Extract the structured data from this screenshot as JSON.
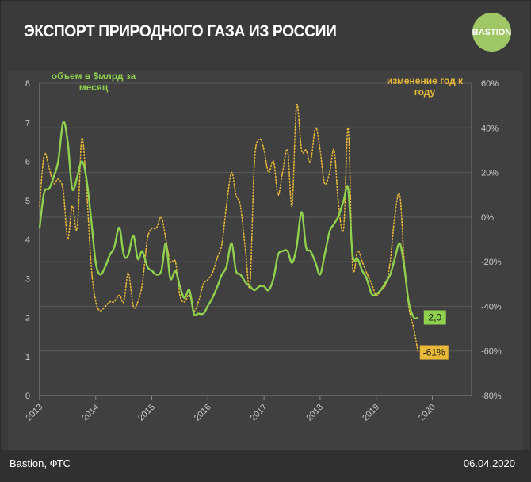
{
  "title": "ЭКСПОРТ ПРИРОДНОГО ГАЗА ИЗ РОССИИ",
  "logo_text": "BASTION",
  "source": "Bastion, ФТС",
  "date": "06.04.2020",
  "colors": {
    "volume": "#8fd14f",
    "change": "#e8b838",
    "background": "#404040",
    "grid": "#5a5a5a",
    "text": "#c8c8c8"
  },
  "chart_data": {
    "type": "line",
    "left_axis_label": "объем в $млрд за месяц",
    "right_axis_label": "изменение год к году",
    "left_ticks": [
      "0",
      "1",
      "2",
      "3",
      "4",
      "5",
      "6",
      "7",
      "8"
    ],
    "right_ticks": [
      "-80%",
      "-60%",
      "-40%",
      "-20%",
      "0%",
      "20%",
      "40%",
      "60%"
    ],
    "x_ticks": [
      "2013",
      "2014",
      "2015",
      "2016",
      "2017",
      "2018",
      "2019",
      "2020"
    ],
    "ylim_left": [
      0,
      8
    ],
    "ylim_right": [
      -80,
      60
    ],
    "grid": true,
    "series": [
      {
        "name": "объем в $млрд за месяц",
        "axis": "left",
        "style": "solid",
        "x": [
          2013.0,
          2013.08,
          2013.17,
          2013.25,
          2013.33,
          2013.42,
          2013.5,
          2013.58,
          2013.67,
          2013.75,
          2013.83,
          2013.92,
          2014.0,
          2014.08,
          2014.17,
          2014.25,
          2014.33,
          2014.42,
          2014.5,
          2014.58,
          2014.67,
          2014.75,
          2014.83,
          2014.92,
          2015.0,
          2015.08,
          2015.17,
          2015.25,
          2015.33,
          2015.42,
          2015.5,
          2015.58,
          2015.67,
          2015.75,
          2015.83,
          2015.92,
          2016.0,
          2016.08,
          2016.17,
          2016.25,
          2016.33,
          2016.42,
          2016.5,
          2016.58,
          2016.67,
          2016.75,
          2016.83,
          2016.92,
          2017.0,
          2017.08,
          2017.17,
          2017.25,
          2017.33,
          2017.42,
          2017.5,
          2017.58,
          2017.67,
          2017.75,
          2017.83,
          2017.92,
          2018.0,
          2018.08,
          2018.17,
          2018.25,
          2018.33,
          2018.42,
          2018.5,
          2018.58,
          2018.67,
          2018.75,
          2018.83,
          2018.92,
          2019.0,
          2019.08,
          2019.17,
          2019.25,
          2019.33,
          2019.42,
          2019.5,
          2019.58,
          2019.67,
          2019.75
        ],
        "values": [
          4.3,
          5.2,
          5.3,
          5.6,
          6.0,
          7.0,
          6.5,
          5.3,
          5.6,
          6.0,
          5.6,
          4.5,
          3.4,
          3.1,
          3.3,
          3.6,
          3.8,
          4.3,
          3.6,
          3.6,
          4.1,
          3.5,
          3.7,
          3.3,
          3.2,
          3.1,
          3.2,
          3.9,
          3.0,
          3.2,
          2.8,
          2.5,
          2.7,
          2.1,
          2.1,
          2.1,
          2.3,
          2.5,
          2.8,
          3.1,
          3.3,
          3.9,
          3.2,
          3.1,
          2.9,
          2.8,
          2.7,
          2.8,
          2.8,
          2.7,
          3.0,
          3.6,
          3.7,
          3.7,
          3.4,
          3.8,
          4.7,
          3.8,
          3.7,
          3.4,
          3.1,
          3.6,
          4.2,
          4.4,
          4.6,
          5.0,
          5.3,
          3.6,
          3.5,
          3.2,
          3.0,
          2.6,
          2.6,
          2.7,
          2.9,
          3.1,
          3.5,
          3.9,
          3.3,
          2.4,
          2.0,
          2.0
        ]
      },
      {
        "name": "изменение год к году",
        "axis": "right",
        "style": "dotted",
        "x": [
          2013.0,
          2013.08,
          2013.17,
          2013.25,
          2013.33,
          2013.42,
          2013.5,
          2013.58,
          2013.67,
          2013.75,
          2013.83,
          2013.92,
          2014.0,
          2014.08,
          2014.17,
          2014.25,
          2014.33,
          2014.42,
          2014.5,
          2014.58,
          2014.67,
          2014.75,
          2014.83,
          2014.92,
          2015.0,
          2015.08,
          2015.17,
          2015.25,
          2015.33,
          2015.42,
          2015.5,
          2015.58,
          2015.67,
          2015.75,
          2015.83,
          2015.92,
          2016.0,
          2016.08,
          2016.17,
          2016.25,
          2016.33,
          2016.42,
          2016.5,
          2016.58,
          2016.67,
          2016.75,
          2016.83,
          2016.92,
          2017.0,
          2017.08,
          2017.17,
          2017.25,
          2017.33,
          2017.42,
          2017.5,
          2017.58,
          2017.67,
          2017.75,
          2017.83,
          2017.92,
          2018.0,
          2018.08,
          2018.17,
          2018.25,
          2018.33,
          2018.42,
          2018.5,
          2018.58,
          2018.67,
          2018.75,
          2018.83,
          2018.92,
          2019.0,
          2019.08,
          2019.17,
          2019.25,
          2019.33,
          2019.42,
          2019.5,
          2019.58,
          2019.67,
          2019.75
        ],
        "values": [
          5,
          28,
          22,
          15,
          17,
          12,
          -10,
          5,
          -5,
          35,
          15,
          -22,
          -38,
          -42,
          -40,
          -38,
          -38,
          -35,
          -38,
          -25,
          -40,
          -38,
          -30,
          -10,
          -5,
          -5,
          0,
          -10,
          -20,
          -20,
          -35,
          -38,
          -35,
          -42,
          -38,
          -30,
          -28,
          -25,
          -18,
          -12,
          5,
          20,
          10,
          5,
          -15,
          -30,
          25,
          35,
          30,
          20,
          25,
          10,
          20,
          30,
          5,
          50,
          30,
          30,
          25,
          40,
          30,
          15,
          20,
          30,
          5,
          -5,
          40,
          -22,
          -15,
          -20,
          -25,
          -30,
          -35,
          -33,
          -30,
          -20,
          0,
          10,
          -20,
          -40,
          -50,
          -61
        ]
      }
    ],
    "end_labels": {
      "volume": "2,0",
      "change": "-61%"
    }
  }
}
